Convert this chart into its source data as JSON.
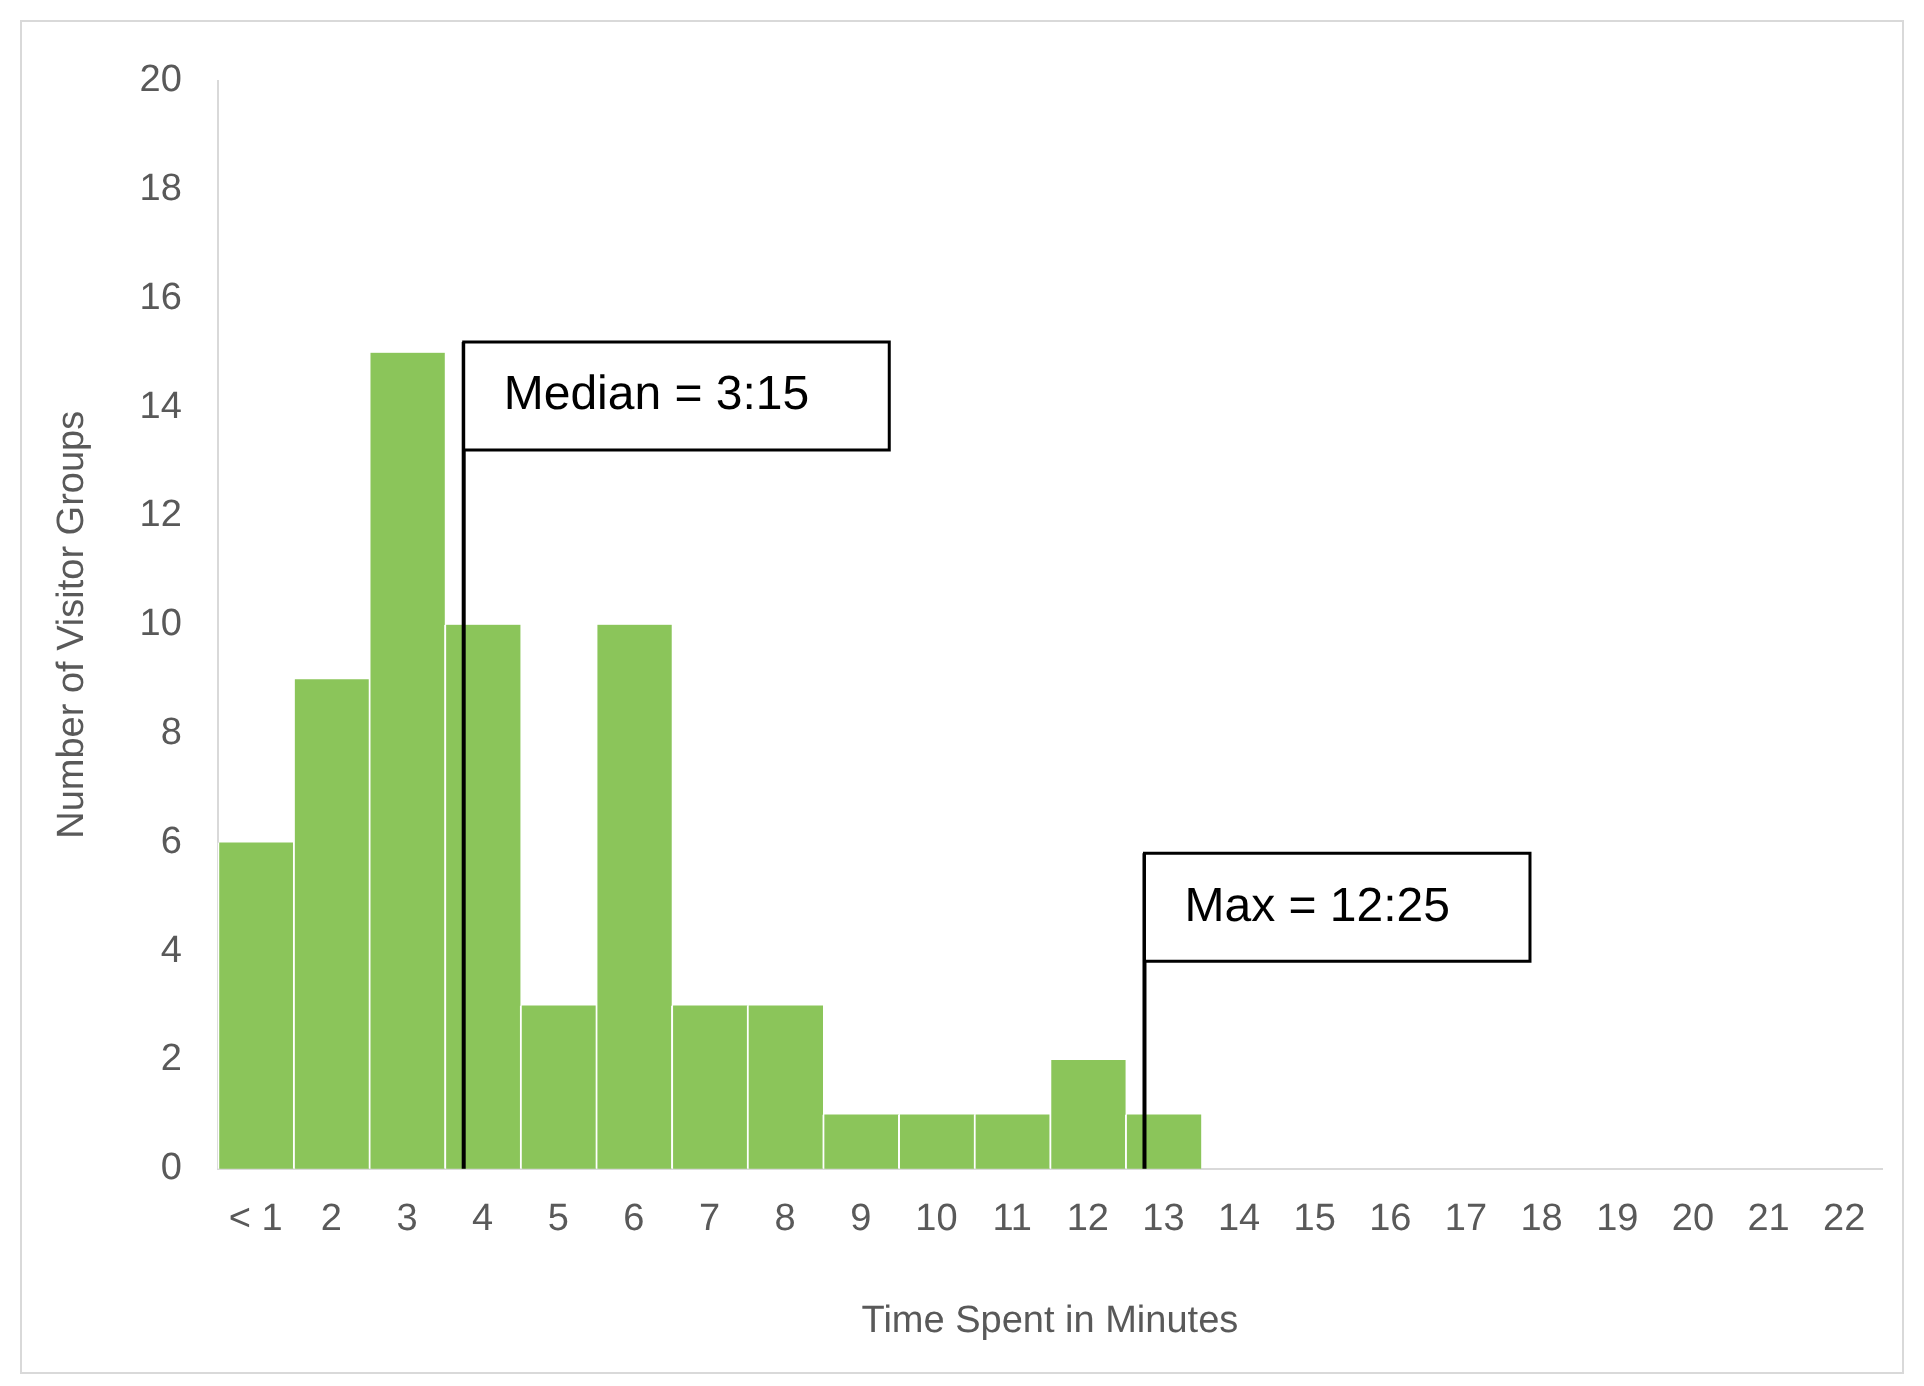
{
  "chart_data": {
    "type": "bar",
    "xlabel": "Time Spent in Minutes",
    "ylabel": "Number of Visitor Groups",
    "categories": [
      "< 1",
      "2",
      "3",
      "4",
      "5",
      "6",
      "7",
      "8",
      "9",
      "10",
      "11",
      "12",
      "13",
      "14",
      "15",
      "16",
      "17",
      "18",
      "19",
      "20",
      "21",
      "22"
    ],
    "values": [
      6,
      9,
      15,
      10,
      3,
      10,
      3,
      3,
      1,
      1,
      1,
      2,
      1,
      0,
      0,
      0,
      0,
      0,
      0,
      0,
      0,
      0
    ],
    "color": "#8bc55a",
    "ylim": [
      0,
      20
    ],
    "yticks": [
      0,
      2,
      4,
      6,
      8,
      10,
      12,
      14,
      16,
      18,
      20
    ],
    "grid": false,
    "legend": false,
    "ref_lines": [
      {
        "axis": "x",
        "value": "4",
        "label": "Median = 3:15",
        "color": "#000000"
      },
      {
        "axis": "x",
        "value": "13",
        "label": "Max = 12:25",
        "color": "#000000"
      }
    ]
  }
}
